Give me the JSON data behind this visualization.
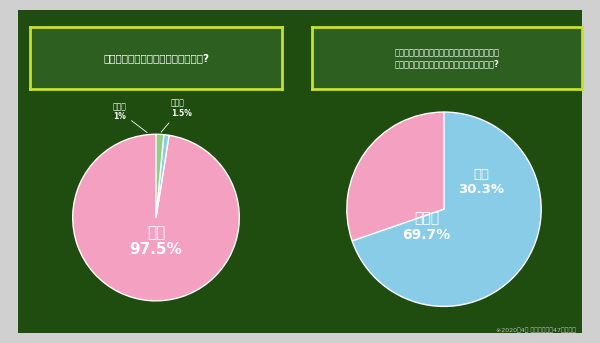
{
  "background_color": "#1e4d0f",
  "outer_bg": "#d0d0d0",
  "chart1": {
    "title": "現在通っている学校は休校中ですか?",
    "slices": [
      97.5,
      1.0,
      1.5
    ],
    "colors": [
      "#f4a0c0",
      "#88cce8",
      "#90d080"
    ],
    "startangle": 90
  },
  "chart2": {
    "title": "現在通っている学校ではオンラインでの授業を\n実施している、もしくは今後実施予定ですか?",
    "slices": [
      30.3,
      69.7
    ],
    "colors": [
      "#f4a0c0",
      "#88cce8"
    ],
    "startangle": 90
  },
  "title_box_color": "#2d6020",
  "title_box_edge_color": "#c8de30",
  "title_text_color": "#ffffff",
  "label_text_color": "#ffffff",
  "footer_text": "※2020年4月 高校生ラボ・47都道府県",
  "footer_color": "#bbbbbb"
}
